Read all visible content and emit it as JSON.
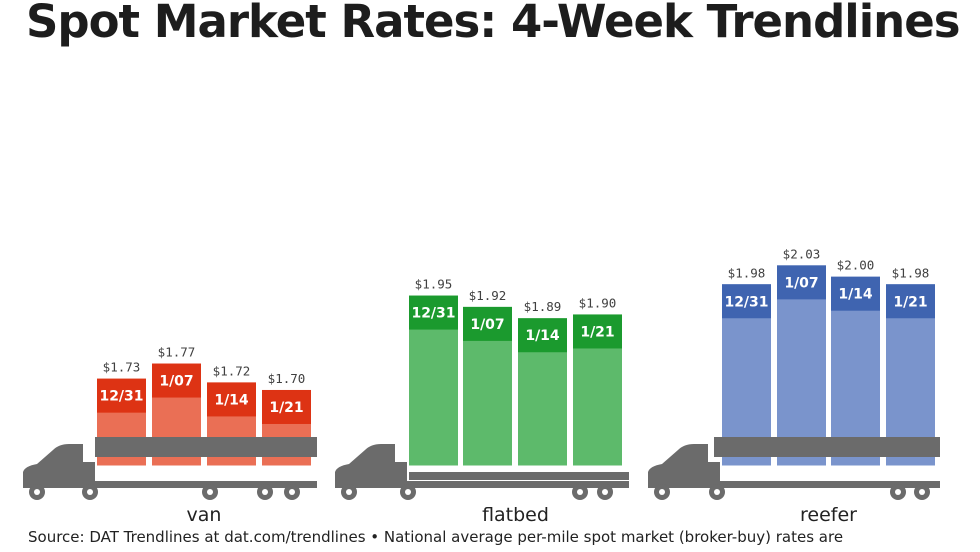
{
  "title": "Spot Market Rates: 4-Week Trendlines",
  "source": "Source: DAT Trendlines at dat.com/trendlines • National average per-mile spot market (broker-buy) rates are",
  "chart_data": {
    "type": "bar",
    "title": "Spot Market Rates: 4-Week Trendlines",
    "units": "$ per mile",
    "legend": "none",
    "grid": false,
    "groups": [
      {
        "name": "van",
        "color": "#ea6f55",
        "label_color": "#dd3314",
        "categories": [
          "12/31",
          "1/07",
          "1/14",
          "1/21"
        ],
        "values": [
          1.73,
          1.77,
          1.72,
          1.7
        ],
        "value_labels": [
          "$1.73",
          "$1.77",
          "$1.72",
          "$1.70"
        ]
      },
      {
        "name": "flatbed",
        "color": "#5dba6b",
        "label_color": "#1b9a2e",
        "categories": [
          "12/31",
          "1/07",
          "1/14",
          "1/21"
        ],
        "values": [
          1.95,
          1.92,
          1.89,
          1.9
        ],
        "value_labels": [
          "$1.95",
          "$1.92",
          "$1.89",
          "$1.90"
        ]
      },
      {
        "name": "reefer",
        "color": "#7a94cc",
        "label_color": "#3f64b0",
        "categories": [
          "12/31",
          "1/07",
          "1/14",
          "1/21"
        ],
        "values": [
          1.98,
          2.03,
          2.0,
          1.98
        ],
        "value_labels": [
          "$1.98",
          "$2.03",
          "$2.00",
          "$1.98"
        ]
      }
    ]
  },
  "colors": {
    "truck": "#6b6b6b",
    "title_text": "#1d1d1d"
  },
  "icons": [
    "semi-truck-icon"
  ]
}
